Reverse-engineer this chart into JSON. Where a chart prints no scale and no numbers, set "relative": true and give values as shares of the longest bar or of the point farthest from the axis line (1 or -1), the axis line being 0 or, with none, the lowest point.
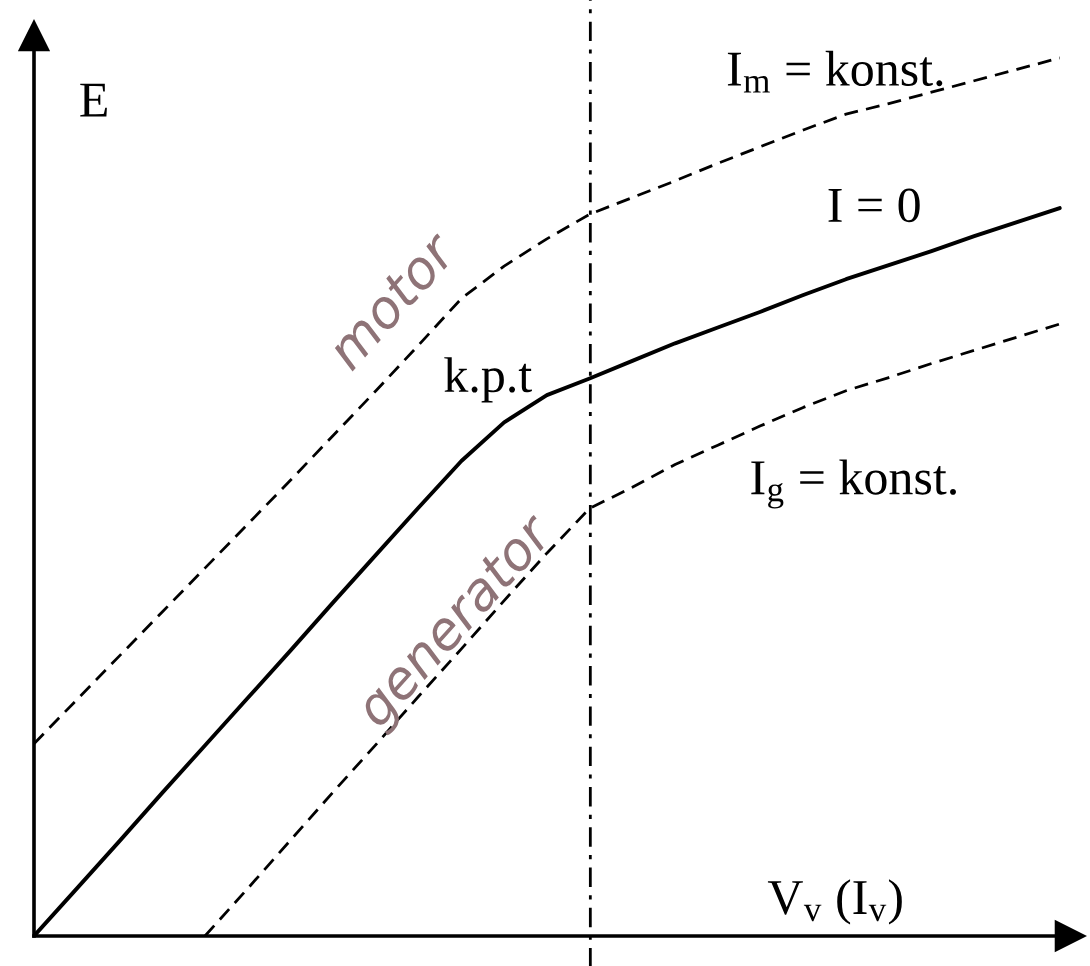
{
  "chart_data": {
    "type": "line",
    "relative": true,
    "tick_labels": false,
    "legend": false,
    "xlabel": "V$_{v}$ (I$_{v}$)",
    "ylabel": "E",
    "categories": [
      null,
      null,
      null,
      null,
      null,
      null,
      null,
      null,
      null,
      null,
      null,
      null,
      null,
      null,
      null,
      null,
      null,
      null,
      null,
      null,
      null,
      null,
      null,
      null,
      null
    ],
    "series": [
      {
        "name": "I$_{m}$ = konst.",
        "color": "#000000",
        "line_style": "dashed",
        "values": [
          0.219,
          0.269,
          0.319,
          0.369,
          0.419,
          0.469,
          0.519,
          0.57,
          0.621,
          0.673,
          0.726,
          0.763,
          0.794,
          0.822,
          0.841,
          0.86,
          0.88,
          0.899,
          0.918,
          0.936,
          0.948,
          0.961,
          0.974,
          0.987,
          1.0
        ]
      },
      {
        "name": "I = 0",
        "color": "#000000",
        "line_style": "solid",
        "values": [
          0,
          0.054,
          0.108,
          0.163,
          0.217,
          0.271,
          0.325,
          0.38,
          0.434,
          0.488,
          0.541,
          0.585,
          0.616,
          0.635,
          0.655,
          0.675,
          0.693,
          0.711,
          0.73,
          0.748,
          0.764,
          0.78,
          0.797,
          0.813,
          0.829
        ]
      },
      {
        "name": "I$_{g}$ = konst.",
        "color": "#000000",
        "line_style": "dashed",
        "values": [
          null,
          null,
          null,
          null,
          0,
          0.054,
          0.109,
          0.164,
          0.218,
          0.273,
          0.327,
          0.382,
          0.436,
          0.487,
          0.511,
          0.537,
          0.559,
          0.581,
          0.602,
          0.621,
          0.636,
          0.652,
          0.667,
          0.682,
          0.697
        ]
      }
    ],
    "annotations": [
      "k.p.t",
      "motor",
      "generator"
    ]
  }
}
